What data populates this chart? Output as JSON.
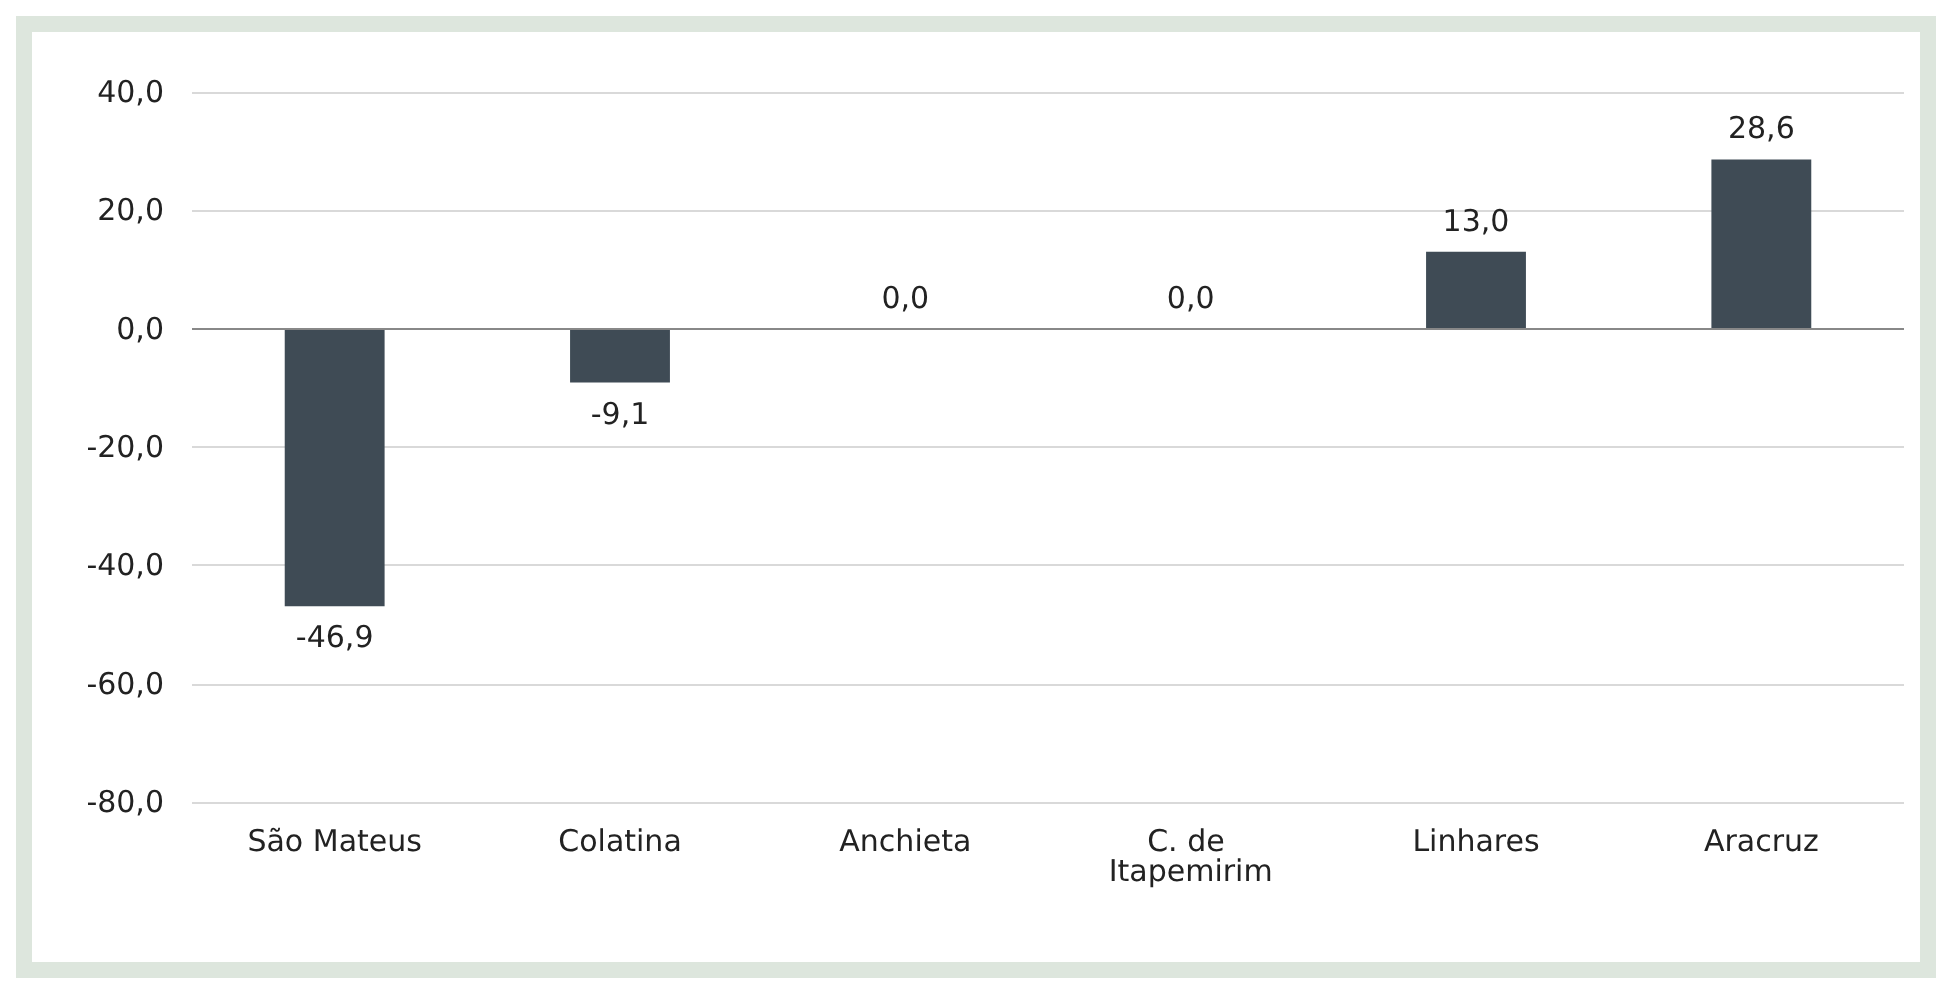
{
  "chart_data": {
    "type": "bar",
    "categories": [
      "São Mateus",
      "Colatina",
      "Anchieta",
      "C. de Itapemirim",
      "Linhares",
      "Aracruz"
    ],
    "values": [
      -46.9,
      -9.1,
      0,
      0,
      13,
      28.6
    ],
    "value_labels": [
      "-46,9",
      "-9,1",
      "0,0",
      "0,0",
      "13,0",
      "28,6"
    ],
    "color": "#3f4b55",
    "ylim": [
      -80,
      40
    ],
    "yticks": [
      {
        "value": -80,
        "label": "-80,0"
      },
      {
        "value": -60,
        "label": "-60,0"
      },
      {
        "value": -40,
        "label": "-40,0"
      },
      {
        "value": -20,
        "label": "-20,0"
      },
      {
        "value": 0,
        "label": "0,0"
      },
      {
        "value": 20,
        "label": "20,0"
      },
      {
        "value": 40,
        "label": "40,0"
      }
    ],
    "grid": "y"
  }
}
